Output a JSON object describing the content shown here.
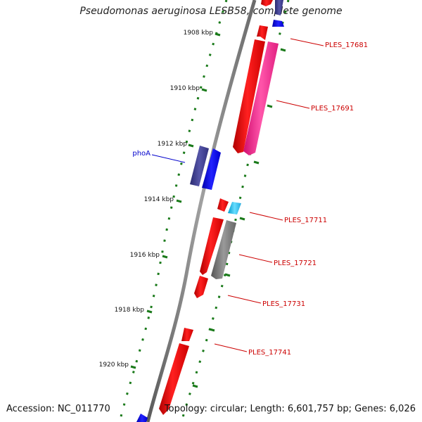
{
  "title": "Pseudomonas aeruginosa LESB58, complete genome",
  "footer": {
    "accession": "Accession: NC_011770",
    "summary": "Topology: circular; Length: 6,601,757 bp; Genes: 6,026"
  },
  "ticks": [
    {
      "label": "1908 kbp"
    },
    {
      "label": "1910 kbp"
    },
    {
      "label": "1912 kbp"
    },
    {
      "label": "1914 kbp"
    },
    {
      "label": "1916 kbp"
    },
    {
      "label": "1918 kbp"
    },
    {
      "label": "1920 kbp"
    }
  ],
  "gene_labels": [
    {
      "text": "phoA",
      "color": "#0000cc"
    },
    {
      "text": "PLES_17681",
      "color": "#cc0000"
    },
    {
      "text": "PLES_17691",
      "color": "#cc0000"
    },
    {
      "text": "PLES_17711",
      "color": "#cc0000"
    },
    {
      "text": "PLES_17721",
      "color": "#cc0000"
    },
    {
      "text": "PLES_17731",
      "color": "#cc0000"
    },
    {
      "text": "PLES_17741",
      "color": "#cc0000"
    }
  ],
  "colors": {
    "backbone": "#808080",
    "tick_dots": "#1a7a1a",
    "gene_red": "#ff0000",
    "gene_magenta": "#ff3399",
    "gene_navy": "#3b3b8f",
    "gene_blue": "#0000ff",
    "gene_cyan": "#33ccee",
    "gene_gray": "#707070"
  }
}
